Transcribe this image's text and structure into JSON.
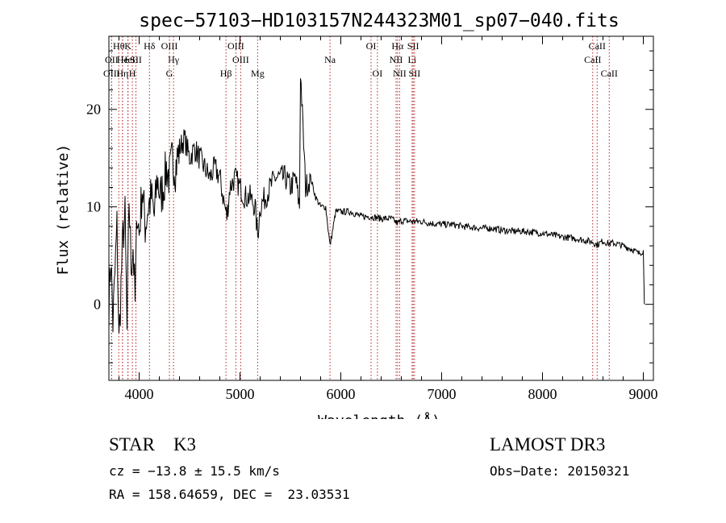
{
  "chart_data": {
    "type": "line",
    "title": "spec−57103−HD103157N244323M01_sp07−040.fits",
    "xlabel": "Wavelength (Å)",
    "ylabel": "Flux (relative)",
    "xlim": [
      3700,
      9100
    ],
    "ylim": [
      -7.8,
      27.5
    ],
    "xticks": [
      4000,
      5000,
      6000,
      7000,
      8000,
      9000
    ],
    "yticks": [
      0,
      10,
      20
    ],
    "line_color": "#000000",
    "marker_color": "#b22222",
    "series": [
      {
        "name": "flux",
        "x": [
          3700,
          3720,
          3740,
          3760,
          3780,
          3800,
          3820,
          3840,
          3860,
          3880,
          3900,
          3920,
          3940,
          3960,
          3980,
          4000,
          4030,
          4060,
          4090,
          4120,
          4150,
          4180,
          4210,
          4240,
          4270,
          4300,
          4330,
          4360,
          4400,
          4450,
          4500,
          4550,
          4600,
          4650,
          4700,
          4750,
          4800,
          4850,
          4870,
          4900,
          4950,
          5000,
          5050,
          5100,
          5150,
          5175,
          5200,
          5250,
          5300,
          5350,
          5400,
          5450,
          5500,
          5550,
          5590,
          5600,
          5650,
          5700,
          5750,
          5800,
          5850,
          5893,
          5950,
          6000,
          6100,
          6200,
          6300,
          6400,
          6500,
          6563,
          6600,
          6700,
          6800,
          6900,
          7000,
          7100,
          7200,
          7300,
          7400,
          7500,
          7600,
          7700,
          7800,
          7900,
          8000,
          8100,
          8200,
          8300,
          8400,
          8500,
          8540,
          8600,
          8660,
          8700,
          8800,
          8900,
          8950,
          9000,
          9010
        ],
        "y": [
          0,
          5,
          -2,
          3,
          8,
          -4,
          2,
          7,
          9,
          -3,
          11,
          4,
          6,
          0,
          10,
          7,
          12,
          8,
          10,
          11,
          9,
          13,
          11,
          12,
          14,
          13,
          15,
          14,
          16,
          17,
          15,
          16,
          15,
          14,
          13,
          14,
          13,
          10,
          9,
          12,
          13,
          12,
          11,
          11,
          10,
          7,
          10,
          11,
          12,
          13,
          13,
          13,
          12,
          13,
          10,
          24,
          12,
          13,
          11,
          10,
          10,
          6,
          9.5,
          9.5,
          9.5,
          9,
          9,
          8.8,
          8.8,
          8.3,
          8.6,
          8.5,
          8.5,
          8.3,
          8.2,
          8.2,
          8,
          7.9,
          7.8,
          7.8,
          7.6,
          7.5,
          7.5,
          7.4,
          7.3,
          7.1,
          6.9,
          6.8,
          6.6,
          6.4,
          6.1,
          6.5,
          6.2,
          6.3,
          6.0,
          5.6,
          5.2,
          5.5,
          0
        ]
      }
    ],
    "line_markers": [
      {
        "label": "Hθ",
        "x": 3798,
        "row": 1
      },
      {
        "label": "OII",
        "x": 3727,
        "row": 2
      },
      {
        "label": "OIII",
        "x": 3727,
        "row": 3
      },
      {
        "label": "He",
        "x": 3835,
        "row": 2
      },
      {
        "label": "Hη",
        "x": 3835,
        "row": 3
      },
      {
        "label": "K",
        "x": 3889,
        "row": 1
      },
      {
        "label": "HeI",
        "x": 3889,
        "row": 2
      },
      {
        "label": "H",
        "x": 3933,
        "row": 3
      },
      {
        "label": "SII",
        "x": 3968,
        "row": 2
      },
      {
        "label": "Hδ",
        "x": 4102,
        "row": 1
      },
      {
        "label": "OIII",
        "x": 4300,
        "row": 1
      },
      {
        "label": "Hγ",
        "x": 4341,
        "row": 2
      },
      {
        "label": "G",
        "x": 4300,
        "row": 3
      },
      {
        "label": "Hβ",
        "x": 4861,
        "row": 3
      },
      {
        "label": "OIII",
        "x": 4959,
        "row": 1
      },
      {
        "label": "OIII",
        "x": 5007,
        "row": 2
      },
      {
        "label": "Mg",
        "x": 5175,
        "row": 3
      },
      {
        "label": "Na",
        "x": 5893,
        "row": 2
      },
      {
        "label": "OI",
        "x": 6300,
        "row": 1
      },
      {
        "label": "OI",
        "x": 6363,
        "row": 3
      },
      {
        "label": "Hα",
        "x": 6563,
        "row": 1
      },
      {
        "label": "NII",
        "x": 6548,
        "row": 2
      },
      {
        "label": "NII",
        "x": 6583,
        "row": 3
      },
      {
        "label": "SII",
        "x": 6717,
        "row": 1
      },
      {
        "label": "Li",
        "x": 6707,
        "row": 2
      },
      {
        "label": "SII",
        "x": 6731,
        "row": 3
      },
      {
        "label": "CaII",
        "x": 8542,
        "row": 1
      },
      {
        "label": "CaII",
        "x": 8498,
        "row": 2
      },
      {
        "label": "CaII",
        "x": 8662,
        "row": 3
      }
    ]
  },
  "info": {
    "classification": "STAR    K3",
    "survey": "LAMOST DR3",
    "redshift": "cz = −13.8 ± 15.5 km/s",
    "obs_date": "Obs−Date: 20150321",
    "coords": "RA = 158.64659, DEC =  23.03531"
  }
}
